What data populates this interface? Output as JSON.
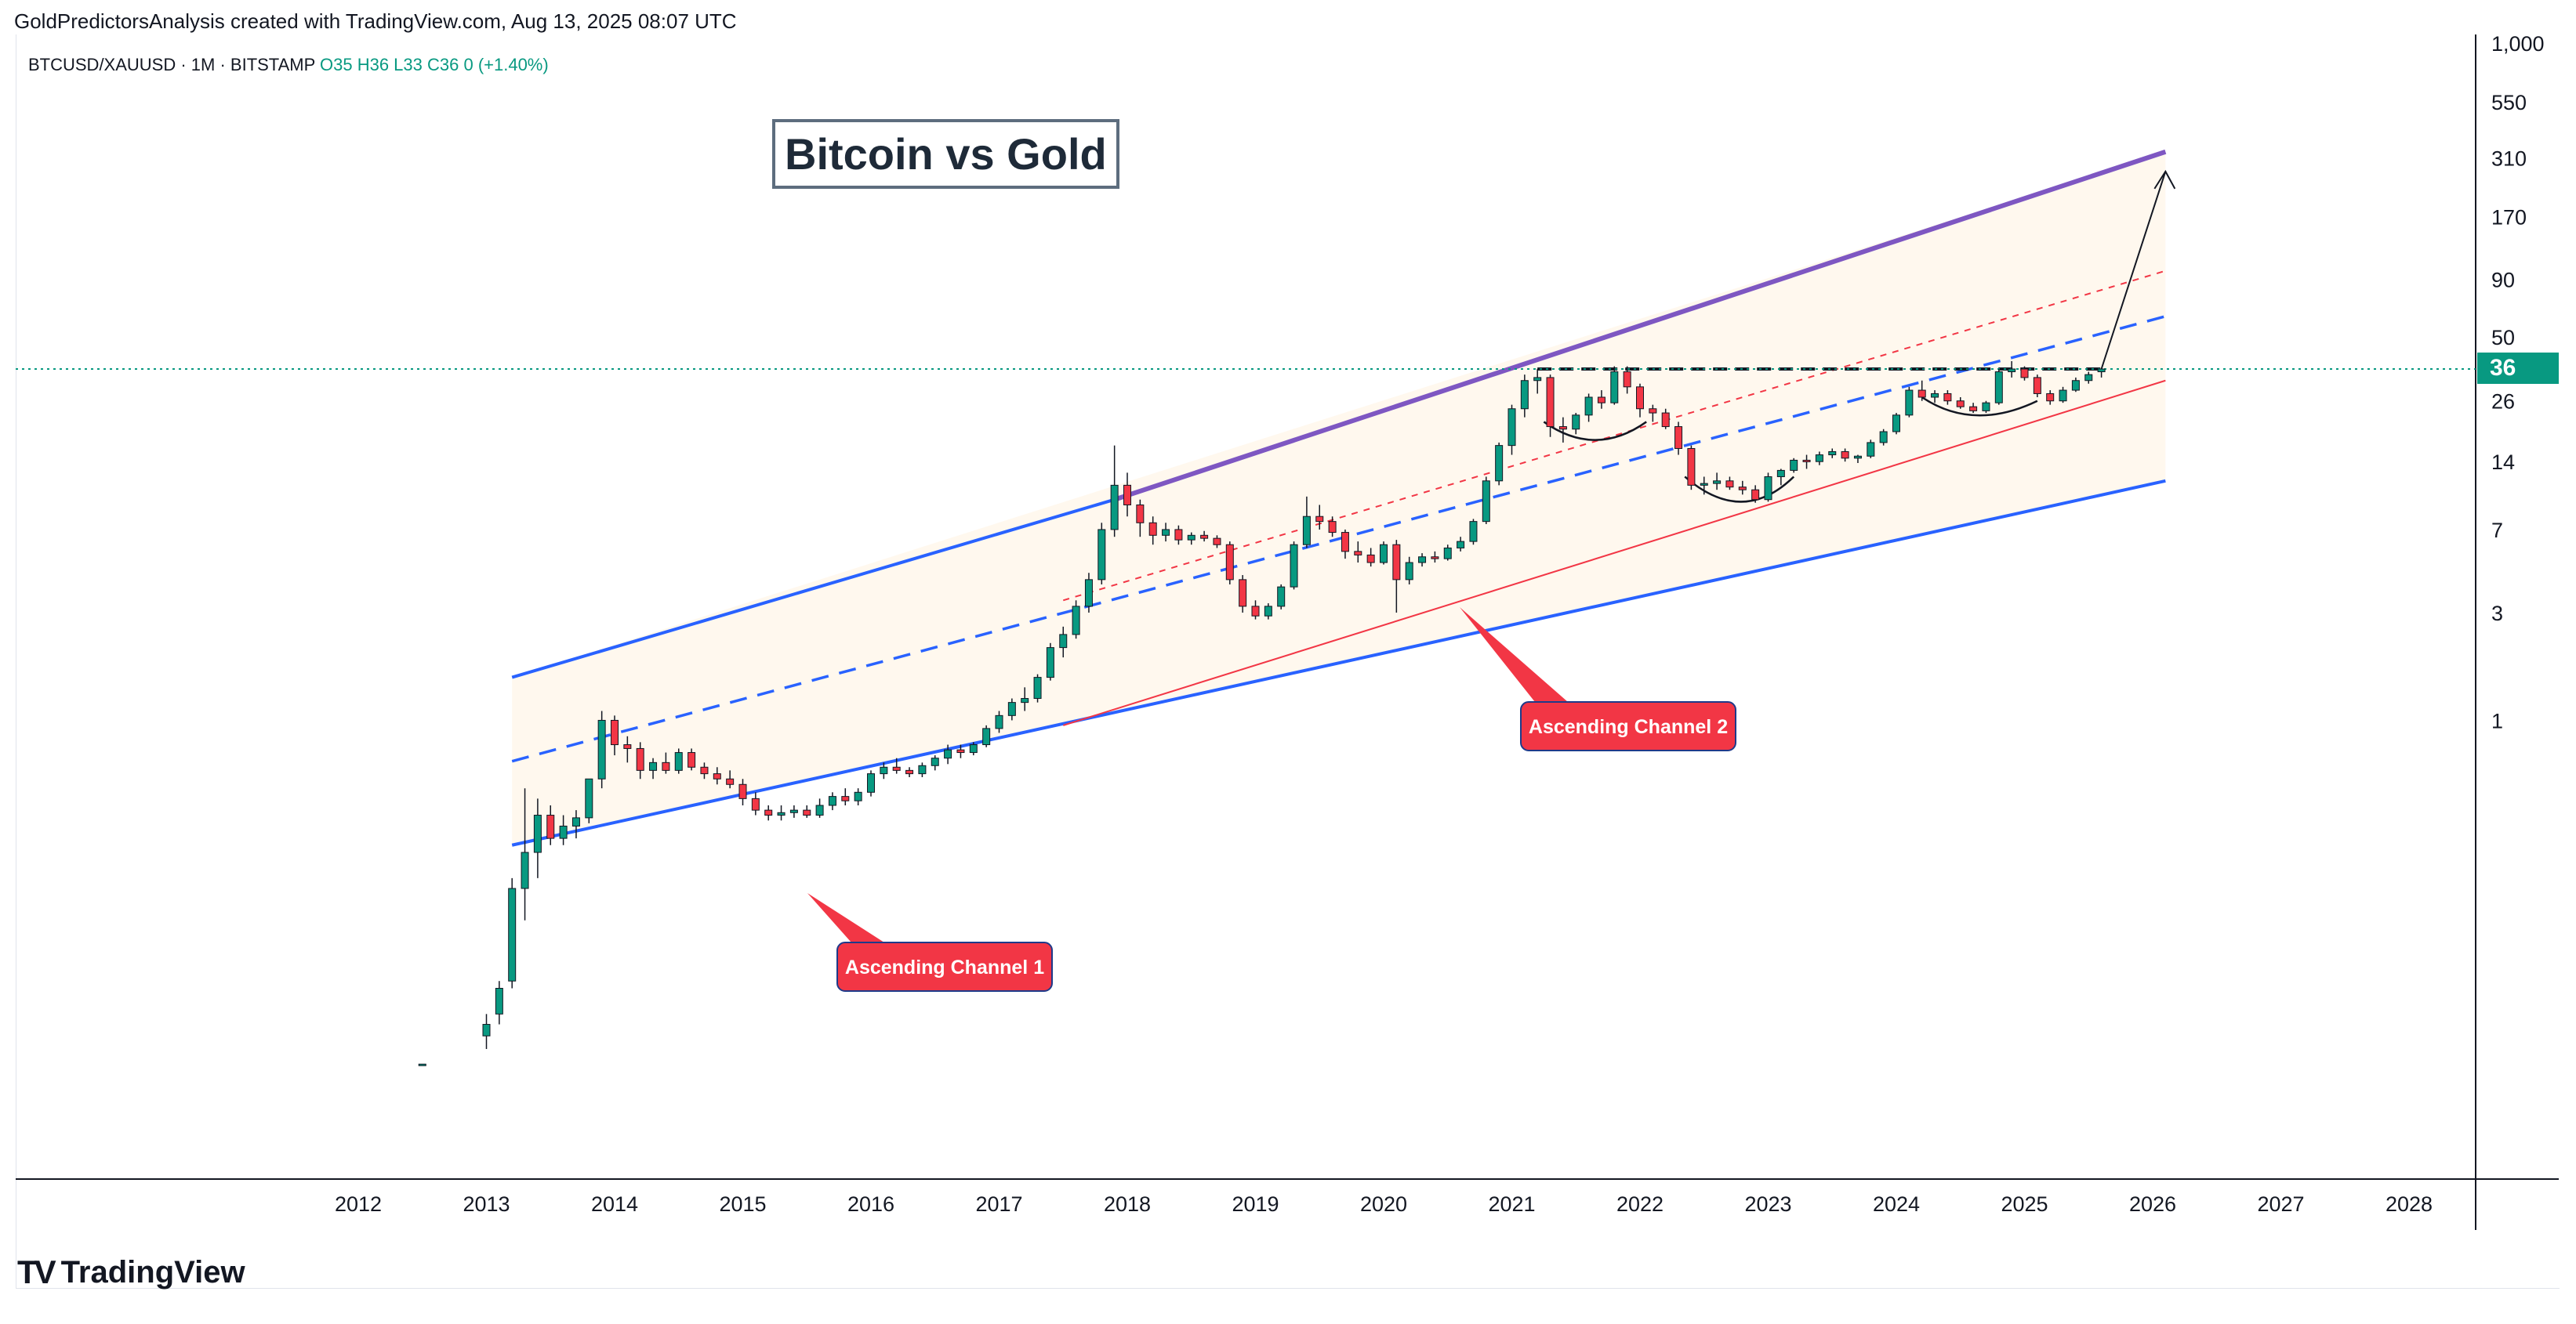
{
  "header": {
    "note": "GoldPredictorsAnalysis created with TradingView.com, Aug 13, 2025 08:07 UTC"
  },
  "symbol": {
    "name": "BTCUSD/XAUUSD · 1M · BITSTAMP",
    "ohlc": "O35  H36  L33  C36  0 (+1.40%)"
  },
  "brand": {
    "name": "TradingView"
  },
  "colors": {
    "up": "#089981",
    "down": "#f23645",
    "channel": "#2962ff",
    "top_line": "#7e57c2",
    "label_bg": "#f23645"
  },
  "chart_data": {
    "type": "candlestick",
    "title": "Bitcoin vs Gold",
    "y_scale": "log",
    "y_ticks": [
      "1,000",
      "550",
      "310",
      "170",
      "90",
      "50",
      "26",
      "14",
      "7",
      "3",
      "1"
    ],
    "x_ticks": [
      "2012",
      "2013",
      "2014",
      "2015",
      "2016",
      "2017",
      "2018",
      "2019",
      "2020",
      "2021",
      "2022",
      "2023",
      "2024",
      "2025",
      "2026",
      "2027",
      "2028"
    ],
    "x_range": [
      2011.0,
      2028.5
    ],
    "last_price": "36",
    "annotations": [
      "Ascending Channel 1",
      "Ascending Channel 2"
    ],
    "channel_1": {
      "lower": [
        [
          2013.2,
          0.28
        ],
        [
          2026.1,
          11.5
        ]
      ],
      "upper": [
        [
          2013.2,
          1.55
        ],
        [
          2026.1,
          330
        ]
      ]
    },
    "channel_2": {
      "lower": [
        [
          2017.5,
          0.95
        ],
        [
          2026.1,
          32
        ]
      ]
    },
    "resistance": {
      "y": 36,
      "x": [
        2021.2,
        2025.6
      ]
    },
    "candles": [
      [
        2012.5,
        0.03,
        0.03,
        0.03,
        0.03
      ],
      [
        2013.0,
        0.04,
        0.05,
        0.035,
        0.045
      ],
      [
        2013.1,
        0.05,
        0.07,
        0.045,
        0.065
      ],
      [
        2013.2,
        0.07,
        0.2,
        0.065,
        0.18
      ],
      [
        2013.3,
        0.18,
        0.5,
        0.13,
        0.26
      ],
      [
        2013.4,
        0.26,
        0.45,
        0.2,
        0.38
      ],
      [
        2013.5,
        0.38,
        0.42,
        0.28,
        0.3
      ],
      [
        2013.6,
        0.3,
        0.38,
        0.28,
        0.34
      ],
      [
        2013.7,
        0.34,
        0.4,
        0.3,
        0.37
      ],
      [
        2013.8,
        0.37,
        0.55,
        0.35,
        0.55
      ],
      [
        2013.9,
        0.55,
        1.1,
        0.5,
        1.0
      ],
      [
        2014.0,
        1.0,
        1.05,
        0.7,
        0.78
      ],
      [
        2014.1,
        0.78,
        0.85,
        0.65,
        0.75
      ],
      [
        2014.2,
        0.75,
        0.8,
        0.55,
        0.6
      ],
      [
        2014.3,
        0.6,
        0.68,
        0.55,
        0.65
      ],
      [
        2014.4,
        0.65,
        0.72,
        0.58,
        0.6
      ],
      [
        2014.5,
        0.6,
        0.75,
        0.58,
        0.72
      ],
      [
        2014.6,
        0.72,
        0.75,
        0.6,
        0.62
      ],
      [
        2014.7,
        0.62,
        0.65,
        0.55,
        0.58
      ],
      [
        2014.8,
        0.58,
        0.62,
        0.52,
        0.55
      ],
      [
        2014.9,
        0.55,
        0.6,
        0.5,
        0.52
      ],
      [
        2015.0,
        0.52,
        0.55,
        0.42,
        0.45
      ],
      [
        2015.1,
        0.45,
        0.48,
        0.38,
        0.4
      ],
      [
        2015.2,
        0.4,
        0.42,
        0.36,
        0.38
      ],
      [
        2015.3,
        0.38,
        0.42,
        0.36,
        0.39
      ],
      [
        2015.4,
        0.39,
        0.42,
        0.37,
        0.4
      ],
      [
        2015.5,
        0.4,
        0.42,
        0.37,
        0.38
      ],
      [
        2015.6,
        0.38,
        0.45,
        0.37,
        0.42
      ],
      [
        2015.7,
        0.42,
        0.48,
        0.4,
        0.46
      ],
      [
        2015.8,
        0.46,
        0.5,
        0.42,
        0.44
      ],
      [
        2015.9,
        0.44,
        0.5,
        0.42,
        0.48
      ],
      [
        2016.0,
        0.48,
        0.6,
        0.46,
        0.58
      ],
      [
        2016.1,
        0.58,
        0.65,
        0.55,
        0.62
      ],
      [
        2016.2,
        0.62,
        0.68,
        0.58,
        0.6
      ],
      [
        2016.3,
        0.6,
        0.62,
        0.56,
        0.58
      ],
      [
        2016.4,
        0.58,
        0.65,
        0.56,
        0.63
      ],
      [
        2016.5,
        0.63,
        0.7,
        0.6,
        0.68
      ],
      [
        2016.6,
        0.68,
        0.78,
        0.64,
        0.74
      ],
      [
        2016.7,
        0.74,
        0.78,
        0.68,
        0.72
      ],
      [
        2016.8,
        0.72,
        0.8,
        0.7,
        0.78
      ],
      [
        2016.9,
        0.78,
        0.95,
        0.76,
        0.92
      ],
      [
        2017.0,
        0.92,
        1.1,
        0.88,
        1.05
      ],
      [
        2017.1,
        1.05,
        1.25,
        1.0,
        1.2
      ],
      [
        2017.2,
        1.2,
        1.4,
        1.1,
        1.25
      ],
      [
        2017.3,
        1.25,
        1.6,
        1.2,
        1.55
      ],
      [
        2017.4,
        1.55,
        2.2,
        1.5,
        2.1
      ],
      [
        2017.5,
        2.1,
        2.6,
        1.9,
        2.4
      ],
      [
        2017.6,
        2.4,
        3.4,
        2.3,
        3.2
      ],
      [
        2017.7,
        3.2,
        4.5,
        3.0,
        4.2
      ],
      [
        2017.8,
        4.2,
        7.5,
        4.0,
        7.0
      ],
      [
        2017.9,
        7.0,
        16.5,
        6.5,
        11.0
      ],
      [
        2018.0,
        11.0,
        12.5,
        8.0,
        9.0
      ],
      [
        2018.1,
        9.0,
        9.5,
        6.5,
        7.5
      ],
      [
        2018.2,
        7.5,
        8.0,
        6.0,
        6.6
      ],
      [
        2018.3,
        6.6,
        7.5,
        6.2,
        7.0
      ],
      [
        2018.4,
        7.0,
        7.3,
        6.0,
        6.3
      ],
      [
        2018.5,
        6.3,
        6.8,
        6.0,
        6.6
      ],
      [
        2018.6,
        6.6,
        6.9,
        6.2,
        6.4
      ],
      [
        2018.7,
        6.4,
        6.6,
        5.8,
        6.0
      ],
      [
        2018.8,
        6.0,
        6.2,
        4.0,
        4.2
      ],
      [
        2018.9,
        4.2,
        4.4,
        3.0,
        3.2
      ],
      [
        2019.0,
        3.2,
        3.4,
        2.8,
        2.9
      ],
      [
        2019.1,
        2.9,
        3.3,
        2.8,
        3.2
      ],
      [
        2019.2,
        3.2,
        4.0,
        3.1,
        3.9
      ],
      [
        2019.3,
        3.9,
        6.2,
        3.8,
        6.0
      ],
      [
        2019.4,
        6.0,
        9.8,
        5.8,
        8.0
      ],
      [
        2019.5,
        8.0,
        9.0,
        7.0,
        7.6
      ],
      [
        2019.6,
        7.6,
        8.0,
        6.5,
        6.8
      ],
      [
        2019.7,
        6.8,
        7.0,
        5.2,
        5.6
      ],
      [
        2019.8,
        5.6,
        6.2,
        5.0,
        5.4
      ],
      [
        2019.9,
        5.4,
        5.8,
        4.8,
        5.0
      ],
      [
        2020.0,
        5.0,
        6.2,
        4.9,
        6.0
      ],
      [
        2020.1,
        6.0,
        6.3,
        3.0,
        4.2
      ],
      [
        2020.2,
        4.2,
        5.3,
        4.0,
        5.0
      ],
      [
        2020.3,
        5.0,
        5.5,
        4.8,
        5.3
      ],
      [
        2020.4,
        5.3,
        5.6,
        5.0,
        5.2
      ],
      [
        2020.5,
        5.2,
        6.0,
        5.1,
        5.8
      ],
      [
        2020.6,
        5.8,
        6.5,
        5.6,
        6.2
      ],
      [
        2020.7,
        6.2,
        7.8,
        6.0,
        7.6
      ],
      [
        2020.8,
        7.6,
        12.0,
        7.4,
        11.5
      ],
      [
        2020.9,
        11.5,
        17.0,
        11.0,
        16.5
      ],
      [
        2021.0,
        16.5,
        25.0,
        15.0,
        24.0
      ],
      [
        2021.1,
        24.0,
        34.0,
        22.0,
        32.0
      ],
      [
        2021.2,
        32.0,
        36.0,
        28.0,
        33.0
      ],
      [
        2021.3,
        33.0,
        34.0,
        18.0,
        20.0
      ],
      [
        2021.4,
        20.0,
        22.0,
        17.0,
        19.5
      ],
      [
        2021.5,
        19.5,
        23.0,
        18.5,
        22.5
      ],
      [
        2021.6,
        22.5,
        28.0,
        21.0,
        27.0
      ],
      [
        2021.7,
        27.0,
        29.0,
        24.0,
        25.5
      ],
      [
        2021.8,
        25.5,
        37.0,
        25.0,
        35.0
      ],
      [
        2021.9,
        35.0,
        37.0,
        28.0,
        30.0
      ],
      [
        2022.0,
        30.0,
        31.0,
        22.0,
        24.0
      ],
      [
        2022.1,
        24.0,
        25.0,
        21.0,
        23.0
      ],
      [
        2022.2,
        23.0,
        24.0,
        19.5,
        20.0
      ],
      [
        2022.3,
        20.0,
        21.0,
        15.0,
        16.0
      ],
      [
        2022.4,
        16.0,
        16.5,
        10.5,
        11.0
      ],
      [
        2022.5,
        11.0,
        12.0,
        10.0,
        11.2
      ],
      [
        2022.6,
        11.2,
        12.5,
        10.5,
        11.5
      ],
      [
        2022.7,
        11.5,
        12.0,
        10.5,
        10.8
      ],
      [
        2022.8,
        10.8,
        11.5,
        10.0,
        10.5
      ],
      [
        2022.9,
        10.5,
        11.0,
        9.2,
        9.5
      ],
      [
        2023.0,
        9.5,
        12.5,
        9.3,
        12.0
      ],
      [
        2023.1,
        12.0,
        13.0,
        11.0,
        12.8
      ],
      [
        2023.2,
        12.8,
        14.5,
        12.5,
        14.2
      ],
      [
        2023.3,
        14.2,
        15.0,
        13.0,
        14.0
      ],
      [
        2023.4,
        14.0,
        15.5,
        13.5,
        15.0
      ],
      [
        2023.5,
        15.0,
        16.0,
        14.5,
        15.5
      ],
      [
        2023.6,
        15.5,
        16.0,
        14.0,
        14.5
      ],
      [
        2023.7,
        14.5,
        15.0,
        13.8,
        14.8
      ],
      [
        2023.8,
        14.8,
        17.5,
        14.5,
        17.0
      ],
      [
        2023.9,
        17.0,
        19.5,
        16.5,
        19.0
      ],
      [
        2024.0,
        19.0,
        23.0,
        18.5,
        22.5
      ],
      [
        2024.1,
        22.5,
        30.0,
        22.0,
        29.0
      ],
      [
        2024.2,
        29.0,
        32.0,
        26.0,
        27.0
      ],
      [
        2024.3,
        27.0,
        29.0,
        25.5,
        28.0
      ],
      [
        2024.4,
        28.0,
        29.0,
        25.0,
        26.0
      ],
      [
        2024.5,
        26.0,
        27.0,
        24.0,
        24.5
      ],
      [
        2024.6,
        24.5,
        25.5,
        23.0,
        23.5
      ],
      [
        2024.7,
        23.5,
        26.0,
        23.0,
        25.5
      ],
      [
        2024.8,
        25.5,
        36.0,
        25.0,
        35.0
      ],
      [
        2024.9,
        35.0,
        39.0,
        33.0,
        36.0
      ],
      [
        2025.0,
        36.0,
        37.0,
        32.0,
        33.0
      ],
      [
        2025.1,
        33.0,
        34.0,
        27.0,
        28.0
      ],
      [
        2025.2,
        28.0,
        29.0,
        25.0,
        26.0
      ],
      [
        2025.3,
        26.0,
        30.0,
        25.5,
        29.0
      ],
      [
        2025.4,
        29.0,
        33.0,
        28.5,
        32.0
      ],
      [
        2025.5,
        32.0,
        35.0,
        31.0,
        34.0
      ],
      [
        2025.6,
        35.0,
        36.0,
        33.0,
        36.0
      ]
    ]
  }
}
